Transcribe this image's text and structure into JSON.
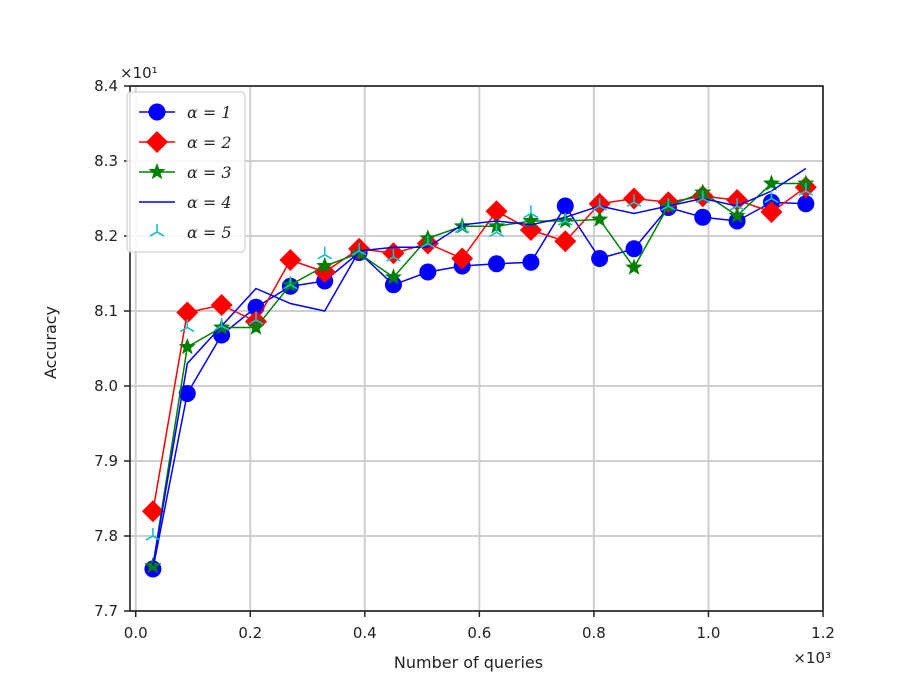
{
  "chart_data": {
    "type": "line",
    "xlabel": "Number of queries",
    "ylabel": "Accuracy",
    "x_offset_label": "×10³",
    "y_offset_label": "×10¹",
    "xlim": [
      -0.01,
      1.2
    ],
    "ylim": [
      7.7,
      8.4
    ],
    "xticks": [
      0.0,
      0.2,
      0.4,
      0.6,
      0.8,
      1.0,
      1.2
    ],
    "xtick_labels": [
      "0.0",
      "0.2",
      "0.4",
      "0.6",
      "0.8",
      "1.0",
      "1.2"
    ],
    "yticks": [
      7.7,
      7.8,
      7.9,
      8.0,
      8.1,
      8.2,
      8.3,
      8.4
    ],
    "ytick_labels": [
      "7.7",
      "7.8",
      "7.9",
      "8.0",
      "8.1",
      "8.2",
      "8.3",
      "8.4"
    ],
    "grid": true,
    "legend_position": "upper-left",
    "x": [
      0.03,
      0.09,
      0.15,
      0.21,
      0.27,
      0.33,
      0.39,
      0.45,
      0.51,
      0.57,
      0.63,
      0.69,
      0.75,
      0.81,
      0.87,
      0.93,
      0.99,
      1.05,
      1.11,
      1.17
    ],
    "series": [
      {
        "name": "α = 1",
        "color": "#0000ff",
        "marker": "circle",
        "values": [
          7.756,
          7.99,
          8.068,
          8.105,
          8.133,
          8.14,
          8.178,
          8.135,
          8.152,
          8.16,
          8.163,
          8.165,
          8.24,
          8.17,
          8.183,
          8.238,
          8.225,
          8.22,
          8.245,
          8.243
        ]
      },
      {
        "name": "α = 2",
        "color": "#ff0000",
        "marker": "diamond",
        "values": [
          7.833,
          8.098,
          8.108,
          8.086,
          8.168,
          8.152,
          8.183,
          8.177,
          8.19,
          8.17,
          8.233,
          8.208,
          8.193,
          8.243,
          8.25,
          8.245,
          8.253,
          8.248,
          8.232,
          8.265
        ]
      },
      {
        "name": "α = 3",
        "color": "#008000",
        "marker": "star",
        "values": [
          7.76,
          8.052,
          8.078,
          8.078,
          8.135,
          8.16,
          8.177,
          8.145,
          8.197,
          8.213,
          8.213,
          8.22,
          8.22,
          8.222,
          8.158,
          8.24,
          8.258,
          8.227,
          8.27,
          8.27
        ]
      },
      {
        "name": "α = 4",
        "color": "#0000ff",
        "marker": "none",
        "values": [
          7.76,
          8.03,
          8.08,
          8.13,
          8.11,
          8.1,
          8.18,
          8.185,
          8.185,
          8.215,
          8.22,
          8.215,
          8.225,
          8.24,
          8.23,
          8.24,
          8.25,
          8.24,
          8.26,
          8.29
        ]
      },
      {
        "name": "α = 5",
        "color": "#17becf",
        "marker": "tri",
        "values": [
          7.8,
          8.078,
          8.08,
          8.088,
          8.135,
          8.175,
          8.18,
          8.172,
          8.19,
          8.21,
          8.205,
          8.23,
          8.22,
          8.24,
          8.245,
          8.24,
          8.25,
          8.24,
          8.25,
          8.26
        ]
      }
    ]
  }
}
